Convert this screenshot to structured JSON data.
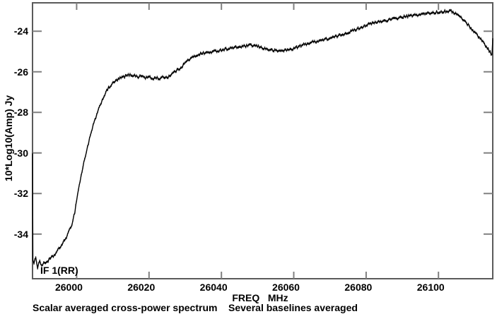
{
  "chart_data": {
    "type": "line",
    "ylabel": "10*Log10(Amp) Jy",
    "xlabel": "FREQ   MHz",
    "annotation": "IF 1(RR)",
    "caption": "Scalar averaged cross-power spectrum    Several baselines averaged",
    "x_ticks": [
      26000,
      26020,
      26040,
      26060,
      26080,
      26100
    ],
    "y_ticks": [
      -24,
      -26,
      -28,
      -30,
      -32,
      -34
    ],
    "xlim": [
      25987.8,
      26115.0
    ],
    "ylim": [
      -36.2,
      -22.6
    ],
    "grid": false,
    "legend": "none",
    "colors": {
      "line": "#000000",
      "box": "#5a5a5a",
      "tick": "#808080",
      "text": "#000000",
      "background": "#ffffff"
    },
    "channel_step_mhz": 0.25,
    "noise_db": 0.06,
    "series": [
      {
        "name": "IF 1(RR)",
        "points": [
          [
            25987.8,
            -30.0
          ],
          [
            25987.9,
            -35.3
          ],
          [
            25988.2,
            -35.5
          ],
          [
            25988.7,
            -35.1
          ],
          [
            25989.2,
            -35.65
          ],
          [
            25989.8,
            -35.3
          ],
          [
            25990.3,
            -35.55
          ],
          [
            25990.9,
            -35.45
          ],
          [
            25991.9,
            -35.35
          ],
          [
            25992.8,
            -35.2
          ],
          [
            25993.8,
            -35.05
          ],
          [
            25994.8,
            -34.8
          ],
          [
            25995.8,
            -34.55
          ],
          [
            25996.7,
            -34.3
          ],
          [
            25997.7,
            -33.95
          ],
          [
            25998.7,
            -33.5
          ],
          [
            25999.5,
            -32.9
          ],
          [
            26000.0,
            -32.3
          ],
          [
            26000.7,
            -31.6
          ],
          [
            26001.5,
            -30.9
          ],
          [
            26002.2,
            -30.3
          ],
          [
            26003.0,
            -29.7
          ],
          [
            26003.8,
            -29.15
          ],
          [
            26004.8,
            -28.5
          ],
          [
            26005.8,
            -28.0
          ],
          [
            26006.8,
            -27.5
          ],
          [
            26007.8,
            -27.1
          ],
          [
            26008.8,
            -26.8
          ],
          [
            26009.8,
            -26.6
          ],
          [
            26010.8,
            -26.45
          ],
          [
            26012.0,
            -26.32
          ],
          [
            26013.0,
            -26.25
          ],
          [
            26014.5,
            -26.15
          ],
          [
            26016.0,
            -26.18
          ],
          [
            26017.0,
            -26.25
          ],
          [
            26018.0,
            -26.2
          ],
          [
            26019.0,
            -26.3
          ],
          [
            26020.0,
            -26.25
          ],
          [
            26021.0,
            -26.35
          ],
          [
            26022.0,
            -26.28
          ],
          [
            26023.0,
            -26.35
          ],
          [
            26024.0,
            -26.25
          ],
          [
            26025.0,
            -26.28
          ],
          [
            26026.0,
            -26.15
          ],
          [
            26027.0,
            -26.0
          ],
          [
            26028.0,
            -25.9
          ],
          [
            26029.0,
            -25.75
          ],
          [
            26030.0,
            -25.55
          ],
          [
            26031.0,
            -25.4
          ],
          [
            26032.0,
            -25.3
          ],
          [
            26033.0,
            -25.2
          ],
          [
            26034.0,
            -25.12
          ],
          [
            26035.0,
            -25.08
          ],
          [
            26036.5,
            -25.05
          ],
          [
            26038.0,
            -25.0
          ],
          [
            26040.0,
            -24.92
          ],
          [
            26042.0,
            -24.85
          ],
          [
            26044.0,
            -24.8
          ],
          [
            26046.0,
            -24.75
          ],
          [
            26048.0,
            -24.7
          ],
          [
            26049.5,
            -24.72
          ],
          [
            26051.0,
            -24.8
          ],
          [
            26052.5,
            -24.88
          ],
          [
            26054.0,
            -24.94
          ],
          [
            26055.5,
            -24.97
          ],
          [
            26057.0,
            -24.95
          ],
          [
            26058.5,
            -24.92
          ],
          [
            26060.0,
            -24.85
          ],
          [
            26061.5,
            -24.75
          ],
          [
            26063.0,
            -24.65
          ],
          [
            26064.5,
            -24.57
          ],
          [
            26066.0,
            -24.5
          ],
          [
            26068.0,
            -24.43
          ],
          [
            26070.0,
            -24.35
          ],
          [
            26072.0,
            -24.25
          ],
          [
            26074.0,
            -24.12
          ],
          [
            26076.0,
            -24.0
          ],
          [
            26078.0,
            -23.85
          ],
          [
            26080.0,
            -23.7
          ],
          [
            26082.0,
            -23.6
          ],
          [
            26084.0,
            -23.52
          ],
          [
            26086.0,
            -23.45
          ],
          [
            26088.0,
            -23.38
          ],
          [
            26090.0,
            -23.3
          ],
          [
            26092.0,
            -23.25
          ],
          [
            26094.0,
            -23.2
          ],
          [
            26096.0,
            -23.15
          ],
          [
            26098.0,
            -23.1
          ],
          [
            26100.0,
            -23.06
          ],
          [
            26101.5,
            -23.02
          ],
          [
            26103.0,
            -23.0
          ],
          [
            26104.0,
            -23.05
          ],
          [
            26105.0,
            -23.15
          ],
          [
            26106.0,
            -23.3
          ],
          [
            26107.0,
            -23.45
          ],
          [
            26108.0,
            -23.65
          ],
          [
            26109.0,
            -23.85
          ],
          [
            26110.0,
            -24.05
          ],
          [
            26111.0,
            -24.25
          ],
          [
            26112.0,
            -24.45
          ],
          [
            26113.0,
            -24.7
          ],
          [
            26114.0,
            -24.95
          ],
          [
            26114.8,
            -25.18
          ],
          [
            26115.0,
            -24.4
          ]
        ]
      }
    ]
  }
}
